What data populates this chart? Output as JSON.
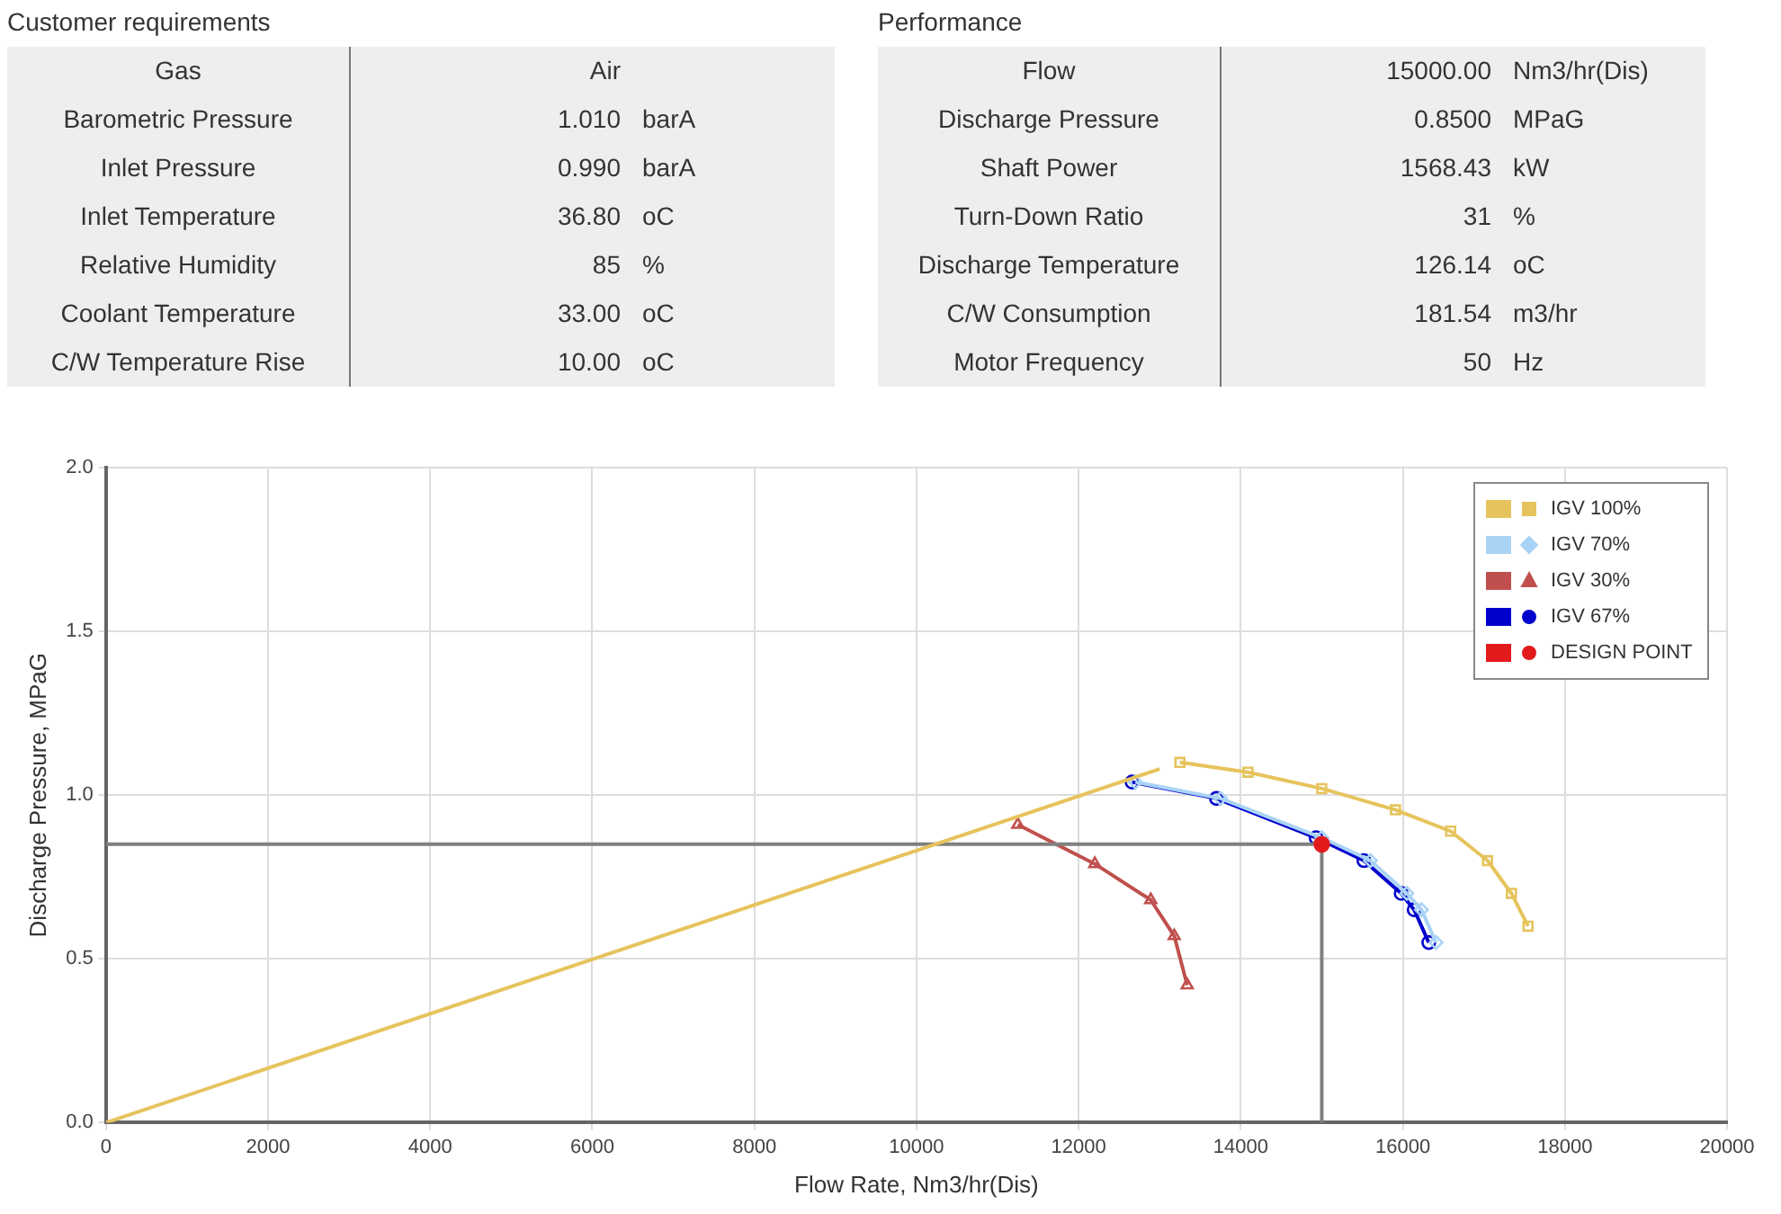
{
  "chart_data": [
    {
      "type": "other",
      "title": "Customer requirements",
      "categories": [
        "Gas",
        "Barometric Pressure",
        "Inlet Pressure",
        "Inlet Temperature",
        "Relative Humidity",
        "Coolant Temperature",
        "C/W Temperature Rise"
      ],
      "value_labels": [
        "Air",
        "1.010 barA",
        "0.990 barA",
        "36.80 oC",
        "85 %",
        "33.00 oC",
        "10.00 oC"
      ]
    },
    {
      "type": "other",
      "title": "Performance",
      "categories": [
        "Flow",
        "Discharge Pressure",
        "Shaft Power",
        "Turn-Down Ratio",
        "Discharge Temperature",
        "C/W Consumption",
        "Motor Frequency"
      ],
      "value_labels": [
        "15000.00 Nm3/hr(Dis)",
        "0.8500 MPaG",
        "1568.43 kW",
        "31 %",
        "126.14 oC",
        "181.54 m3/hr",
        "50 Hz"
      ]
    },
    {
      "type": "scatter",
      "xlabel": "Flow Rate, Nm3/hr(Dis)",
      "ylabel": "Discharge Pressure, MPaG",
      "xlim": [
        0,
        20000
      ],
      "xticks": [
        0,
        2000,
        4000,
        6000,
        8000,
        10000,
        12000,
        14000,
        16000,
        18000,
        20000
      ],
      "ylim": [
        0,
        2
      ],
      "yticks": [
        {
          "value": 0,
          "label": "0.0"
        },
        0.5,
        {
          "value": 1,
          "label": "1.0"
        },
        1.5,
        {
          "value": 2,
          "label": "2.0"
        }
      ],
      "grid": true,
      "legend": "top right",
      "series": [
        {
          "type": "line",
          "color": "#e6c35c",
          "marker": "none",
          "x": [
            0,
            13000
          ],
          "values": [
            0,
            1.08
          ]
        },
        {
          "type": "line",
          "color": "#808080",
          "marker": "none",
          "x": [
            0,
            15000,
            15000
          ],
          "values": [
            0.85,
            0.85,
            0
          ]
        },
        {
          "name": "IGV 100%",
          "type": "line",
          "color": "#e6c35c",
          "marker": "square",
          "x": [
            13250,
            14090,
            15000,
            15910,
            16590,
            17045,
            17340,
            17545
          ],
          "values": [
            1.1,
            1.07,
            1.02,
            0.955,
            0.89,
            0.8,
            0.7,
            0.6
          ]
        },
        {
          "name": "IGV 70%",
          "type": "line",
          "color": "#a9d3f5",
          "marker": "diamond",
          "x": [
            12700,
            13750,
            15000,
            15600,
            16050,
            16230,
            16410
          ],
          "values": [
            1.04,
            0.99,
            0.87,
            0.8,
            0.7,
            0.65,
            0.55
          ]
        },
        {
          "name": "IGV 30%",
          "type": "line",
          "color": "#c0504d",
          "marker": "triangle",
          "x": [
            11250,
            12200,
            12890,
            13180,
            13340
          ],
          "values": [
            0.91,
            0.79,
            0.68,
            0.57,
            0.42
          ]
        },
        {
          "name": "IGV 67%",
          "type": "line",
          "color": "#0000cc",
          "marker": "circle",
          "x": [
            12660,
            13700,
            14930,
            15520,
            15980,
            16140,
            16320
          ],
          "values": [
            1.04,
            0.99,
            0.87,
            0.8,
            0.7,
            0.65,
            0.55
          ]
        },
        {
          "name": "DESIGN POINT",
          "type": "scatter",
          "color": "#e31a1c",
          "marker": "circle",
          "x": [
            15000
          ],
          "values": [
            0.85
          ]
        }
      ]
    }
  ]
}
